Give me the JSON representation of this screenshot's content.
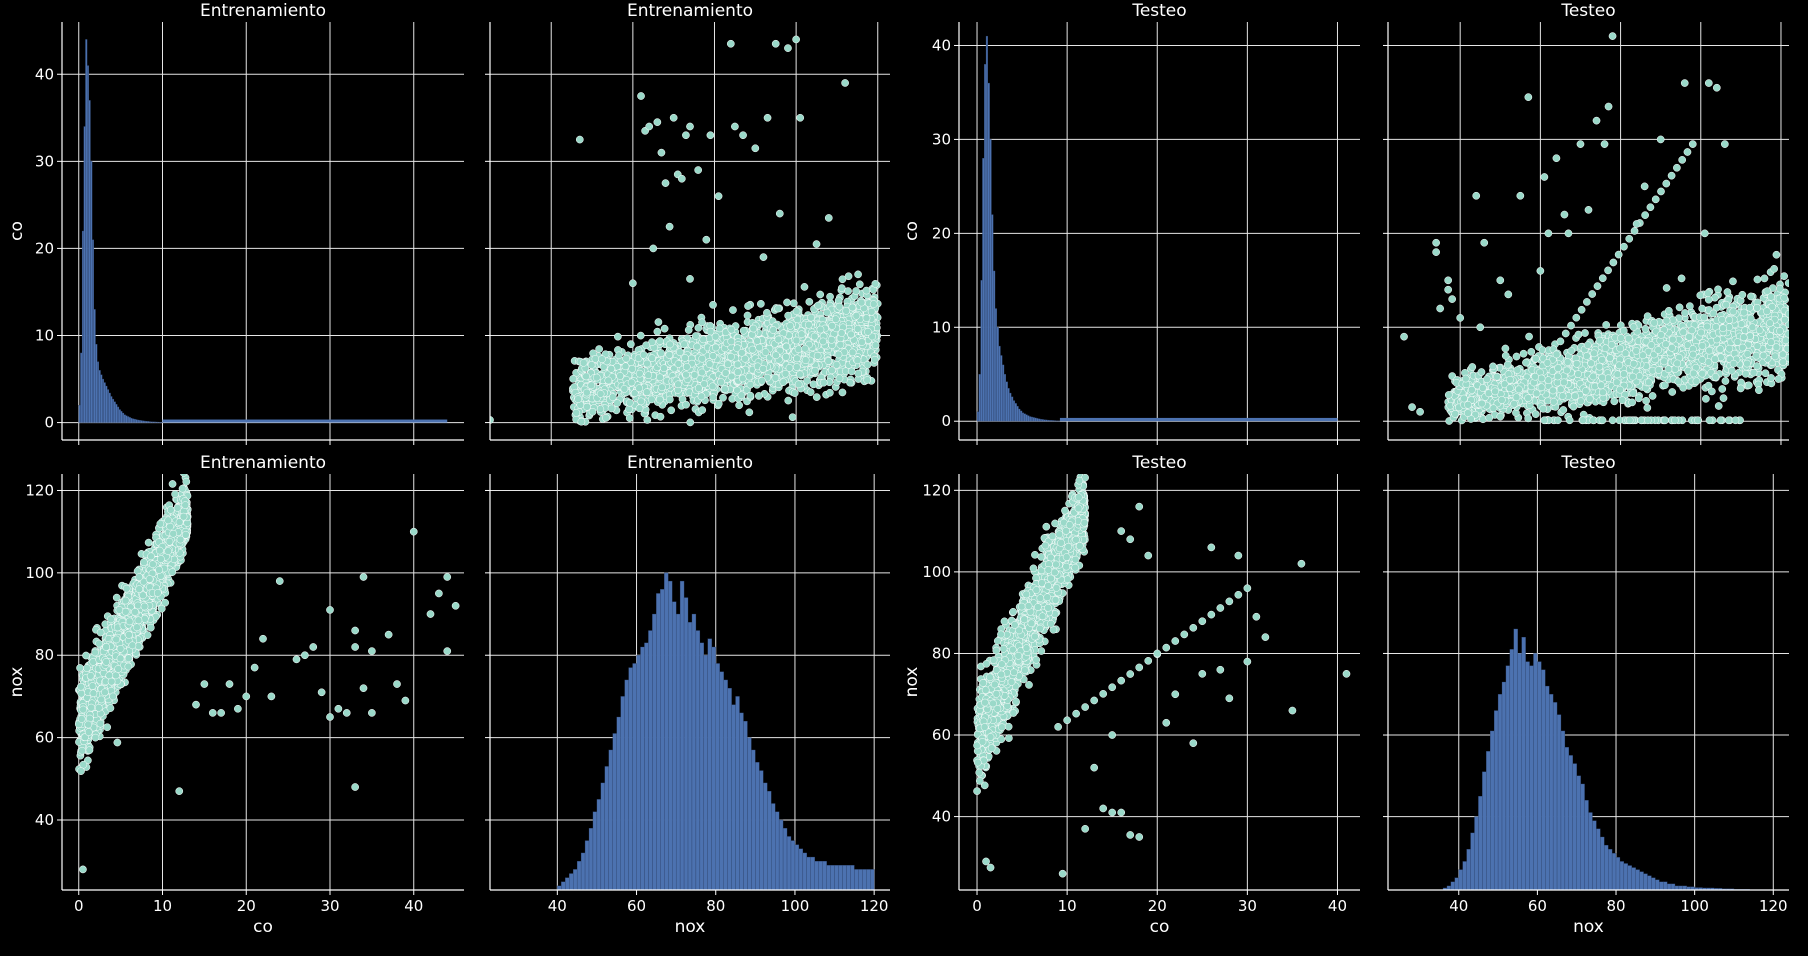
{
  "figure": {
    "background": "#000000",
    "colors": {
      "axis": "#ffffff",
      "grid": "#e6e6e6",
      "hist": "#4c72b0",
      "scatter": "#9ad9c9",
      "scatter_edge": "#ffffff"
    },
    "grid": true
  },
  "chart_data": [
    {
      "id": "train-co-hist",
      "type": "histogram",
      "title": "Entrenamiento",
      "xlabel": "",
      "ylabel": "co",
      "xlim": [
        -2,
        46
      ],
      "ylim": [
        -2,
        46
      ],
      "xticks": [
        0,
        10,
        20,
        30,
        40
      ],
      "yticks": [
        0,
        10,
        20,
        30,
        40
      ],
      "show_xticklabels": false,
      "show_yticklabels": true,
      "bins": {
        "start": 0,
        "width": 0.2,
        "counts": [
          2,
          8,
          22,
          34,
          44,
          41,
          37,
          30,
          21,
          13,
          9,
          7,
          6,
          5.5,
          5,
          4.6,
          4.2,
          3.8,
          3.4,
          3,
          2.7,
          2.4,
          2.1,
          1.8,
          1.5,
          1.3,
          1.1,
          0.9,
          0.8,
          0.7,
          0.6,
          0.5,
          0.45,
          0.4,
          0.35,
          0.3,
          0.27,
          0.24,
          0.21,
          0.18,
          0.16,
          0.14,
          0.12,
          0.1,
          0.09,
          0.08,
          0.07,
          0.06,
          0.05,
          0.05
        ],
        "tail_to": 44,
        "tail_level": 0.04
      }
    },
    {
      "id": "train-nox-co-scatter",
      "type": "scatter",
      "title": "Entrenamiento",
      "xlabel": "",
      "ylabel": "",
      "xlim": [
        25,
        123
      ],
      "ylim": [
        -2,
        46
      ],
      "xticks": [
        40,
        60,
        80,
        100,
        120
      ],
      "yticks": [
        0,
        10,
        20,
        30,
        40
      ],
      "show_xticklabels": false,
      "show_yticklabels": false,
      "main_cloud": {
        "x_range": [
          45,
          120
        ],
        "y_center": [
          3.5,
          10.5
        ],
        "y_spread": [
          3.0,
          4.5
        ],
        "count": 2400
      },
      "outliers": [
        [
          25,
          0.3
        ],
        [
          47,
          32.5
        ],
        [
          62,
          37.5
        ],
        [
          63,
          33.5
        ],
        [
          64,
          34
        ],
        [
          66,
          34.5
        ],
        [
          67,
          31
        ],
        [
          68,
          27.5
        ],
        [
          70,
          35
        ],
        [
          71,
          28.5
        ],
        [
          72,
          28
        ],
        [
          73,
          33
        ],
        [
          74,
          34
        ],
        [
          76,
          29
        ],
        [
          79,
          33
        ],
        [
          81,
          26
        ],
        [
          84,
          43.5
        ],
        [
          85,
          34
        ],
        [
          87,
          33
        ],
        [
          90,
          31.5
        ],
        [
          92,
          19
        ],
        [
          93,
          35
        ],
        [
          95,
          43.5
        ],
        [
          96,
          24
        ],
        [
          98,
          43
        ],
        [
          100,
          44
        ],
        [
          101,
          35
        ],
        [
          105,
          20.5
        ],
        [
          108,
          23.5
        ],
        [
          112,
          39
        ],
        [
          65,
          20
        ],
        [
          69,
          22.5
        ],
        [
          78,
          21
        ],
        [
          74,
          16.5
        ],
        [
          60,
          16
        ]
      ]
    },
    {
      "id": "test-co-hist",
      "type": "histogram",
      "title": "Testeo",
      "xlabel": "",
      "ylabel": "co",
      "xlim": [
        -2,
        42.5
      ],
      "ylim": [
        -2,
        42.5
      ],
      "xticks": [
        0,
        10,
        20,
        30,
        40
      ],
      "yticks": [
        0,
        10,
        20,
        30,
        40
      ],
      "show_xticklabels": false,
      "show_yticklabels": true,
      "bins": {
        "start": 0,
        "width": 0.2,
        "counts": [
          1,
          5,
          15,
          28,
          38,
          41,
          36,
          30,
          22,
          16,
          12,
          10,
          8,
          7,
          6,
          5,
          4.2,
          3.5,
          3,
          2.6,
          2.2,
          1.9,
          1.6,
          1.3,
          1.1,
          0.9,
          0.8,
          0.7,
          0.6,
          0.5,
          0.45,
          0.4,
          0.35,
          0.3,
          0.26,
          0.22,
          0.19,
          0.16,
          0.14,
          0.12,
          0.1,
          0.09,
          0.08,
          0.07,
          0.06,
          0.05
        ],
        "tail_to": 40,
        "tail_level": 0.04
      }
    },
    {
      "id": "test-nox-co-scatter",
      "type": "scatter",
      "title": "Testeo",
      "xlabel": "",
      "ylabel": "",
      "xlim": [
        22,
        122
      ],
      "ylim": [
        -2,
        42.5
      ],
      "xticks": [
        40,
        60,
        80,
        100,
        120
      ],
      "yticks": [
        0,
        10,
        20,
        30,
        40
      ],
      "show_xticklabels": false,
      "show_yticklabels": false,
      "main_cloud": {
        "x_range": [
          37,
          122
        ],
        "y_center": [
          2.0,
          10.0
        ],
        "y_spread": [
          2.0,
          4.5
        ],
        "count": 2400
      },
      "outliers": [
        [
          26,
          9
        ],
        [
          28,
          1.5
        ],
        [
          30,
          1
        ],
        [
          34,
          19
        ],
        [
          34,
          18
        ],
        [
          35,
          12
        ],
        [
          37,
          15
        ],
        [
          37,
          14
        ],
        [
          38,
          13
        ],
        [
          40,
          11
        ],
        [
          45,
          10
        ],
        [
          50,
          15
        ],
        [
          52,
          13.5
        ],
        [
          55,
          24
        ],
        [
          57,
          34.5
        ],
        [
          60,
          16
        ],
        [
          61,
          26
        ],
        [
          62,
          20
        ],
        [
          64,
          28
        ],
        [
          66,
          22
        ],
        [
          67,
          20
        ],
        [
          70,
          29.5
        ],
        [
          72,
          22.5
        ],
        [
          74,
          32
        ],
        [
          76,
          29.5
        ],
        [
          77,
          33.5
        ],
        [
          84,
          21
        ],
        [
          86,
          25
        ],
        [
          90,
          30
        ],
        [
          96,
          36
        ],
        [
          102,
          36
        ],
        [
          104,
          35.5
        ],
        [
          106,
          29.5
        ],
        [
          101,
          20
        ],
        [
          78,
          41
        ],
        [
          44,
          24
        ],
        [
          46,
          19
        ]
      ],
      "diagonal_line": {
        "from": [
          65,
          8.5
        ],
        "to": [
          98,
          29.5
        ],
        "count": 26
      },
      "zero_band": {
        "x_range": [
          60,
          112
        ],
        "y": 0.1,
        "count": 60
      }
    },
    {
      "id": "train-co-nox-scatter",
      "type": "scatter",
      "title": "Entrenamiento",
      "xlabel": "co",
      "ylabel": "nox",
      "xlim": [
        -2,
        46
      ],
      "ylim": [
        23,
        124
      ],
      "xticks": [
        0,
        10,
        20,
        30,
        40
      ],
      "yticks": [
        40,
        60,
        80,
        100,
        120
      ],
      "show_xticklabels": true,
      "show_yticklabels": true,
      "main_cloud": {
        "x_range": [
          0,
          13
        ],
        "y_center": [
          63,
          115
        ],
        "y_spread": [
          10,
          6
        ],
        "count": 2600
      },
      "outliers": [
        [
          0.5,
          28
        ],
        [
          12,
          47
        ],
        [
          14,
          68
        ],
        [
          15,
          73
        ],
        [
          16,
          66
        ],
        [
          17,
          66
        ],
        [
          18,
          73
        ],
        [
          19,
          67
        ],
        [
          20,
          70
        ],
        [
          21,
          77
        ],
        [
          22,
          84
        ],
        [
          23,
          70
        ],
        [
          24,
          98
        ],
        [
          26,
          79
        ],
        [
          27,
          80
        ],
        [
          28,
          82
        ],
        [
          29,
          71
        ],
        [
          30,
          91
        ],
        [
          31,
          67
        ],
        [
          32,
          66
        ],
        [
          33,
          82
        ],
        [
          33,
          86
        ],
        [
          34,
          99
        ],
        [
          34,
          72
        ],
        [
          35,
          81
        ],
        [
          35,
          66
        ],
        [
          37,
          85
        ],
        [
          38,
          73
        ],
        [
          39,
          69
        ],
        [
          40,
          110
        ],
        [
          42,
          90
        ],
        [
          43,
          95
        ],
        [
          44,
          81
        ],
        [
          44,
          99
        ],
        [
          45,
          92
        ],
        [
          33,
          48
        ],
        [
          30,
          65
        ]
      ]
    },
    {
      "id": "train-nox-hist",
      "type": "histogram",
      "title": "Entrenamiento",
      "xlabel": "nox",
      "ylabel": "",
      "xlim": [
        23,
        124
      ],
      "ylim": [
        23,
        124
      ],
      "xticks": [
        40,
        60,
        80,
        100,
        120
      ],
      "yticks": [
        40,
        60,
        80,
        100,
        120
      ],
      "show_xticklabels": true,
      "show_yticklabels": false,
      "bins": {
        "start": 40,
        "width": 1,
        "counts": [
          24,
          25,
          26,
          27,
          28,
          30,
          32,
          35,
          38,
          42,
          45,
          49,
          53,
          57,
          61,
          65,
          70,
          74,
          77,
          78,
          80,
          82,
          83,
          86,
          90,
          95,
          96,
          100,
          98,
          93,
          90,
          98,
          94,
          88,
          90,
          86,
          83,
          80,
          84,
          82,
          78,
          76,
          74,
          72,
          68,
          70,
          66,
          64,
          60,
          57,
          54,
          52,
          49,
          47,
          44,
          42,
          40,
          38,
          36,
          35,
          34,
          33,
          32,
          31,
          31,
          30,
          30,
          30,
          29,
          29,
          29,
          29,
          29,
          29,
          29,
          28,
          28,
          28,
          28,
          28
        ]
      }
    },
    {
      "id": "test-co-nox-scatter",
      "type": "scatter",
      "title": "Testeo",
      "xlabel": "co",
      "ylabel": "nox",
      "xlim": [
        -2,
        42.5
      ],
      "ylim": [
        22,
        124
      ],
      "xticks": [
        0,
        10,
        20,
        30,
        40
      ],
      "yticks": [
        40,
        60,
        80,
        100,
        120
      ],
      "show_xticklabels": true,
      "show_yticklabels": true,
      "main_cloud": {
        "x_range": [
          0,
          12
        ],
        "y_center": [
          60,
          115
        ],
        "y_spread": [
          10,
          7
        ],
        "count": 2400
      },
      "outliers": [
        [
          1,
          29
        ],
        [
          1.5,
          27.5
        ],
        [
          9.5,
          26
        ],
        [
          12,
          37
        ],
        [
          14,
          42
        ],
        [
          15,
          41
        ],
        [
          16,
          41
        ],
        [
          17,
          35.5
        ],
        [
          18,
          35
        ],
        [
          19,
          104
        ],
        [
          20,
          80
        ],
        [
          21,
          63
        ],
        [
          22,
          70
        ],
        [
          24,
          58
        ],
        [
          25,
          75
        ],
        [
          26,
          106
        ],
        [
          27,
          76
        ],
        [
          28,
          69
        ],
        [
          29,
          104
        ],
        [
          30,
          78
        ],
        [
          31,
          89
        ],
        [
          32,
          84
        ],
        [
          35,
          66
        ],
        [
          36,
          102
        ],
        [
          41,
          75
        ],
        [
          13,
          52
        ],
        [
          15,
          60
        ],
        [
          16,
          110
        ],
        [
          17,
          108
        ],
        [
          18,
          116
        ]
      ],
      "diagonal_line": {
        "from": [
          9,
          62
        ],
        "to": [
          30,
          96
        ],
        "count": 22
      }
    },
    {
      "id": "test-nox-hist",
      "type": "histogram",
      "title": "Testeo",
      "xlabel": "nox",
      "ylabel": "",
      "xlim": [
        22,
        124
      ],
      "ylim": [
        22,
        124
      ],
      "xticks": [
        40,
        60,
        80,
        100,
        120
      ],
      "yticks": [
        40,
        60,
        80,
        100,
        120
      ],
      "show_xticklabels": true,
      "show_yticklabels": false,
      "bins": {
        "start": 36,
        "width": 1,
        "counts": [
          22.5,
          23,
          24,
          25,
          27,
          29,
          32,
          36,
          40,
          45,
          51,
          56,
          61,
          66,
          70,
          73,
          77,
          81,
          86,
          80,
          84,
          78,
          77,
          80,
          78,
          76,
          72,
          70,
          68,
          65,
          61,
          57,
          55,
          53,
          50,
          48,
          44,
          41,
          39,
          37,
          35,
          33,
          32,
          31,
          30,
          29,
          28.5,
          28,
          27.5,
          27,
          26.5,
          26,
          25.5,
          25,
          24.5,
          24,
          24,
          23.5,
          23.5,
          23,
          23,
          23,
          22.8,
          22.8,
          22.6,
          22.6,
          22.5,
          22.5,
          22.5,
          22.4,
          22.4,
          22.3,
          22.3,
          22.3,
          22.2,
          22.2,
          22.2,
          22.2,
          22.1,
          22.1,
          22.1,
          22.1,
          22.1,
          22.1
        ]
      }
    }
  ]
}
